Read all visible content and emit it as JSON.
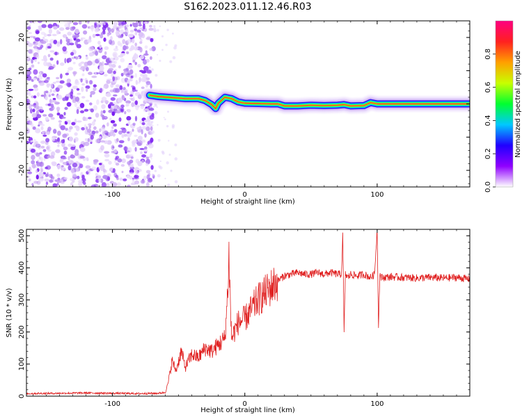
{
  "title": "S162.2023.011.12.46.R03",
  "chart_data": [
    {
      "type": "heatmap",
      "xlabel": "Height of straight line (km)",
      "ylabel": "Frequency (Hz)",
      "xlim": [
        -165,
        170
      ],
      "ylim": [
        -25,
        25
      ],
      "xticks": [
        -100,
        0,
        100
      ],
      "yticks": [
        -20,
        -10,
        0,
        10,
        20
      ],
      "noise_region_x": [
        -165,
        -72
      ],
      "signal_start_x": -72,
      "signal_track": {
        "x": [
          -72,
          -65,
          -55,
          -45,
          -35,
          -30,
          -25,
          -22,
          -20,
          -15,
          -10,
          -5,
          0,
          10,
          20,
          25,
          30,
          40,
          50,
          60,
          70,
          75,
          80,
          90,
          95,
          100,
          120,
          140,
          160,
          170
        ],
        "y": [
          2.6,
          2.2,
          1.9,
          1.6,
          1.6,
          1.0,
          -0.2,
          -1.4,
          0.2,
          2.0,
          1.6,
          0.6,
          0.2,
          0.1,
          0.0,
          0.0,
          -0.6,
          -0.6,
          -0.4,
          -0.5,
          -0.4,
          -0.2,
          -0.6,
          -0.5,
          0.4,
          0.0,
          0.0,
          0.0,
          0.0,
          0.0
        ]
      },
      "colorbar": {
        "label": "Normalized spectral amplitude",
        "range": [
          0,
          1
        ],
        "ticks": [
          "0.0",
          "0.2",
          "0.4",
          "0.6",
          "0.8"
        ],
        "tick_values": [
          0,
          0.2,
          0.4,
          0.6,
          0.8
        ],
        "colormap": [
          "#ffffff",
          "#9000ff",
          "#2000ff",
          "#00c8ff",
          "#00ff30",
          "#c8ff00",
          "#ffa000",
          "#ff2020",
          "#ff0080"
        ]
      }
    },
    {
      "type": "line",
      "xlabel": "Height of straight line (km)",
      "ylabel": "SNR (10 * v/v)",
      "xlim": [
        -165,
        170
      ],
      "ylim": [
        0,
        520
      ],
      "xticks": [
        -100,
        0,
        100
      ],
      "yticks": [
        0,
        100,
        200,
        300,
        400,
        500
      ],
      "line_color": "#e02020",
      "series": [
        {
          "x": [
            -165,
            -140,
            -120,
            -100,
            -80,
            -65,
            -60,
            -58,
            -55,
            -52,
            -48,
            -45,
            -40,
            -35,
            -30,
            -25,
            -20,
            -15,
            -13,
            -12,
            -11,
            -10,
            -8,
            -5,
            0,
            5,
            10,
            15,
            20,
            25,
            30,
            35,
            40,
            45,
            50,
            55,
            60,
            65,
            70,
            73,
            74,
            75,
            76,
            78,
            80,
            85,
            90,
            95,
            98,
            100,
            101,
            102,
            103,
            105,
            110,
            120,
            130,
            140,
            150,
            160,
            170
          ],
          "y": [
            8,
            9,
            10,
            9,
            8,
            9,
            12,
            40,
            110,
            80,
            140,
            90,
            130,
            120,
            150,
            140,
            160,
            180,
            320,
            440,
            300,
            180,
            200,
            230,
            240,
            270,
            300,
            320,
            340,
            360,
            375,
            380,
            385,
            380,
            380,
            385,
            380,
            385,
            380,
            380,
            500,
            200,
            380,
            370,
            380,
            375,
            380,
            370,
            380,
            520,
            220,
            380,
            370,
            370,
            372,
            370,
            368,
            370,
            368,
            370,
            365
          ]
        }
      ]
    }
  ]
}
